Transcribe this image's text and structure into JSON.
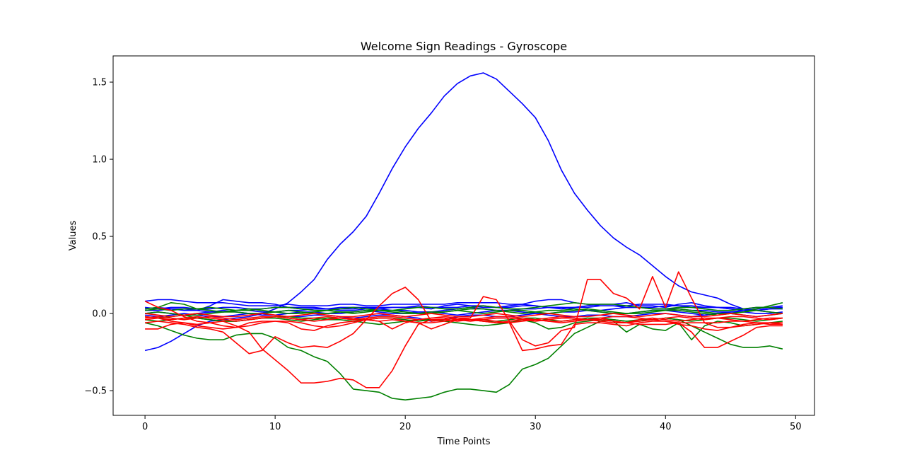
{
  "chart_data": {
    "type": "line",
    "title": "Welcome Sign Readings - Gyroscope",
    "xlabel": "Time Points",
    "ylabel": "Values",
    "xlim": [
      -2.45,
      51.45
    ],
    "ylim": [
      -0.66,
      1.67
    ],
    "x_ticks": [
      0,
      10,
      20,
      30,
      40,
      50
    ],
    "y_ticks": [
      -0.5,
      0.0,
      0.5,
      1.0,
      1.5
    ],
    "y_tick_labels": [
      "−0.5",
      "0.0",
      "0.5",
      "1.0",
      "1.5"
    ],
    "x": [
      0,
      1,
      2,
      3,
      4,
      5,
      6,
      7,
      8,
      9,
      10,
      11,
      12,
      13,
      14,
      15,
      16,
      17,
      18,
      19,
      20,
      21,
      22,
      23,
      24,
      25,
      26,
      27,
      28,
      29,
      30,
      31,
      32,
      33,
      34,
      35,
      36,
      37,
      38,
      39,
      40,
      41,
      42,
      43,
      44,
      45,
      46,
      47,
      48,
      49
    ],
    "grid": false,
    "legend": "none",
    "series": [
      {
        "color": "#0000ff",
        "values": [
          -0.24,
          -0.22,
          -0.18,
          -0.13,
          -0.08,
          -0.05,
          -0.04,
          -0.03,
          -0.02,
          0.0,
          0.03,
          0.07,
          0.14,
          0.22,
          0.35,
          0.45,
          0.53,
          0.63,
          0.78,
          0.94,
          1.08,
          1.2,
          1.3,
          1.41,
          1.49,
          1.54,
          1.56,
          1.52,
          1.44,
          1.36,
          1.27,
          1.12,
          0.93,
          0.78,
          0.67,
          0.57,
          0.49,
          0.43,
          0.38,
          0.31,
          0.24,
          0.18,
          0.14,
          0.12,
          0.1,
          0.06,
          0.03,
          0.02,
          0.01,
          0.0
        ]
      },
      {
        "color": "#0000ff",
        "values": [
          0.08,
          0.09,
          0.09,
          0.08,
          0.07,
          0.07,
          0.07,
          0.06,
          0.05,
          0.05,
          0.05,
          0.06,
          0.05,
          0.05,
          0.05,
          0.06,
          0.06,
          0.05,
          0.05,
          0.06,
          0.06,
          0.06,
          0.06,
          0.06,
          0.07,
          0.07,
          0.07,
          0.07,
          0.06,
          0.06,
          0.08,
          0.09,
          0.09,
          0.07,
          0.06,
          0.05,
          0.05,
          0.05,
          0.06,
          0.06,
          0.06,
          0.05,
          0.05,
          0.04,
          0.04,
          0.03,
          0.02,
          0.03,
          0.04,
          0.05
        ]
      },
      {
        "color": "#0000ff",
        "values": [
          0.03,
          0.04,
          0.03,
          0.02,
          0.02,
          0.05,
          0.09,
          0.08,
          0.07,
          0.07,
          0.06,
          0.04,
          0.03,
          0.03,
          0.03,
          0.03,
          0.03,
          0.04,
          0.04,
          0.04,
          0.04,
          0.04,
          0.03,
          0.05,
          0.06,
          0.05,
          0.04,
          0.04,
          0.05,
          0.06,
          0.05,
          0.04,
          0.03,
          0.04,
          0.05,
          0.06,
          0.06,
          0.07,
          0.05,
          0.05,
          0.04,
          0.06,
          0.07,
          0.05,
          0.04,
          0.03,
          0.02,
          0.02,
          0.03,
          0.04
        ]
      },
      {
        "color": "#0000ff",
        "values": [
          0.02,
          0.02,
          0.03,
          0.03,
          0.02,
          0.01,
          0.01,
          0.02,
          0.02,
          0.01,
          0.01,
          0.02,
          0.02,
          0.03,
          0.03,
          0.02,
          0.02,
          0.03,
          0.03,
          0.02,
          0.02,
          0.01,
          0.01,
          0.02,
          0.03,
          0.04,
          0.03,
          0.02,
          0.02,
          0.03,
          0.03,
          0.04,
          0.04,
          0.03,
          0.02,
          0.02,
          0.03,
          0.04,
          0.04,
          0.03,
          0.03,
          0.03,
          0.02,
          0.02,
          0.01,
          0.01,
          0.02,
          0.02,
          0.03,
          0.03
        ]
      },
      {
        "color": "#0000ff",
        "values": [
          0.0,
          0.01,
          0.0,
          -0.01,
          0.0,
          0.01,
          0.02,
          0.01,
          0.0,
          -0.01,
          -0.01,
          0.0,
          0.01,
          0.01,
          0.0,
          0.0,
          0.01,
          0.02,
          0.01,
          0.0,
          0.0,
          0.01,
          0.01,
          0.0,
          -0.01,
          0.0,
          0.01,
          0.02,
          0.02,
          0.01,
          0.0,
          0.0,
          0.01,
          0.01,
          0.02,
          0.01,
          0.0,
          0.0,
          0.01,
          0.02,
          0.02,
          0.01,
          0.0,
          -0.01,
          0.0,
          0.01,
          0.01,
          0.0,
          0.0,
          0.01
        ]
      },
      {
        "color": "#0000ff",
        "values": [
          -0.01,
          -0.02,
          -0.01,
          0.0,
          -0.01,
          -0.02,
          -0.02,
          -0.01,
          0.0,
          0.0,
          -0.01,
          -0.02,
          -0.02,
          -0.01,
          -0.01,
          -0.02,
          -0.03,
          -0.02,
          -0.01,
          -0.01,
          -0.02,
          -0.03,
          -0.05,
          -0.04,
          -0.02,
          -0.01,
          -0.01,
          -0.02,
          -0.02,
          -0.01,
          0.0,
          -0.01,
          -0.02,
          -0.02,
          -0.01,
          -0.01,
          -0.02,
          -0.02,
          -0.01,
          0.0,
          0.0,
          -0.01,
          -0.02,
          -0.01,
          0.0,
          0.0,
          -0.01,
          -0.02,
          -0.01,
          0.0
        ]
      },
      {
        "color": "#0000ff",
        "values": [
          0.04,
          0.03,
          0.04,
          0.04,
          0.03,
          0.03,
          0.04,
          0.04,
          0.03,
          0.03,
          0.04,
          0.04,
          0.04,
          0.04,
          0.03,
          0.04,
          0.04,
          0.04,
          0.03,
          0.04,
          0.04,
          0.05,
          0.04,
          0.04,
          0.04,
          0.05,
          0.05,
          0.04,
          0.04,
          0.05,
          0.05,
          0.04,
          0.04,
          0.04,
          0.04,
          0.05,
          0.05,
          0.04,
          0.04,
          0.04,
          0.05,
          0.05,
          0.04,
          0.04,
          0.04,
          0.04,
          0.03,
          0.04,
          0.04,
          0.04
        ]
      },
      {
        "color": "#008000",
        "values": [
          0.03,
          0.04,
          0.07,
          0.06,
          0.03,
          0.02,
          0.01,
          0.02,
          0.03,
          0.02,
          0.01,
          0.0,
          0.0,
          0.01,
          0.02,
          0.01,
          0.0,
          0.01,
          0.02,
          0.02,
          0.01,
          0.0,
          0.0,
          0.01,
          0.02,
          0.03,
          0.03,
          0.02,
          0.01,
          0.0,
          0.01,
          0.02,
          0.02,
          0.03,
          0.02,
          0.01,
          0.0,
          0.0,
          0.01,
          0.02,
          0.02,
          0.03,
          0.02,
          0.01,
          0.0,
          0.0,
          0.01,
          0.03,
          0.05,
          0.07
        ]
      },
      {
        "color": "#008000",
        "values": [
          -0.06,
          -0.08,
          -0.11,
          -0.14,
          -0.16,
          -0.17,
          -0.17,
          -0.14,
          -0.13,
          -0.13,
          -0.16,
          -0.22,
          -0.24,
          -0.28,
          -0.31,
          -0.39,
          -0.49,
          -0.5,
          -0.51,
          -0.55,
          -0.56,
          -0.55,
          -0.54,
          -0.51,
          -0.49,
          -0.49,
          -0.5,
          -0.51,
          -0.46,
          -0.36,
          -0.33,
          -0.29,
          -0.21,
          -0.13,
          -0.09,
          -0.05,
          -0.04,
          -0.05,
          -0.04,
          -0.04,
          -0.03,
          -0.04,
          -0.08,
          -0.12,
          -0.16,
          -0.2,
          -0.22,
          -0.22,
          -0.21,
          -0.23
        ]
      },
      {
        "color": "#008000",
        "values": [
          -0.02,
          -0.03,
          -0.02,
          -0.01,
          -0.03,
          -0.04,
          -0.05,
          -0.05,
          -0.04,
          -0.03,
          -0.02,
          -0.02,
          -0.03,
          -0.03,
          -0.04,
          -0.04,
          -0.05,
          -0.06,
          -0.07,
          -0.06,
          -0.05,
          -0.04,
          -0.04,
          -0.05,
          -0.06,
          -0.07,
          -0.08,
          -0.07,
          -0.06,
          -0.04,
          -0.06,
          -0.1,
          -0.09,
          -0.06,
          -0.05,
          -0.04,
          -0.05,
          -0.12,
          -0.07,
          -0.1,
          -0.11,
          -0.06,
          -0.17,
          -0.08,
          -0.05,
          -0.06,
          -0.08,
          -0.07,
          -0.06,
          -0.05
        ]
      },
      {
        "color": "#008000",
        "values": [
          0.0,
          0.01,
          0.0,
          -0.01,
          -0.01,
          0.0,
          0.01,
          0.01,
          0.0,
          0.0,
          0.01,
          0.02,
          0.01,
          0.0,
          0.0,
          0.01,
          0.01,
          0.02,
          0.02,
          0.01,
          0.0,
          0.0,
          0.01,
          0.01,
          0.02,
          0.01,
          0.0,
          0.01,
          0.02,
          0.02,
          0.01,
          0.0,
          0.01,
          0.02,
          0.03,
          0.02,
          0.01,
          0.0,
          0.0,
          0.01,
          0.02,
          0.02,
          0.01,
          0.0,
          -0.01,
          0.0,
          0.01,
          0.02,
          0.01,
          0.0
        ]
      },
      {
        "color": "#008000",
        "values": [
          -0.04,
          -0.05,
          -0.04,
          -0.03,
          -0.03,
          -0.04,
          -0.05,
          -0.05,
          -0.04,
          -0.03,
          -0.03,
          -0.04,
          -0.05,
          -0.04,
          -0.03,
          -0.03,
          -0.04,
          -0.04,
          -0.03,
          -0.03,
          -0.04,
          -0.05,
          -0.04,
          -0.04,
          -0.03,
          -0.04,
          -0.05,
          -0.05,
          -0.04,
          -0.03,
          -0.03,
          -0.04,
          -0.05,
          -0.04,
          -0.03,
          -0.03,
          -0.04,
          -0.05,
          -0.05,
          -0.04,
          -0.03,
          -0.04,
          -0.05,
          -0.04,
          -0.03,
          -0.03,
          -0.04,
          -0.05,
          -0.04,
          -0.03
        ]
      },
      {
        "color": "#008000",
        "values": [
          0.02,
          0.03,
          0.02,
          0.03,
          0.03,
          0.04,
          0.03,
          0.02,
          0.02,
          0.03,
          0.04,
          0.04,
          0.03,
          0.02,
          0.02,
          0.03,
          0.04,
          0.03,
          0.02,
          0.02,
          0.03,
          0.04,
          0.04,
          0.03,
          0.03,
          0.04,
          0.05,
          0.04,
          0.03,
          0.03,
          0.04,
          0.05,
          0.06,
          0.07,
          0.06,
          0.06,
          0.06,
          0.05,
          0.04,
          0.03,
          0.03,
          0.04,
          0.04,
          0.03,
          0.02,
          0.02,
          0.03,
          0.04,
          0.04,
          0.03
        ]
      },
      {
        "color": "#ff0000",
        "values": [
          -0.1,
          -0.1,
          -0.07,
          -0.06,
          -0.08,
          -0.09,
          -0.1,
          -0.09,
          -0.06,
          -0.05,
          -0.05,
          -0.06,
          -0.1,
          -0.11,
          -0.08,
          -0.06,
          -0.05,
          -0.04,
          0.05,
          0.13,
          0.17,
          0.09,
          -0.05,
          -0.04,
          -0.03,
          -0.03,
          0.11,
          0.09,
          -0.05,
          -0.17,
          -0.21,
          -0.19,
          -0.11,
          -0.09,
          0.22,
          0.22,
          0.13,
          0.1,
          0.03,
          0.24,
          0.04,
          0.27,
          0.1,
          -0.06,
          -0.06,
          -0.05,
          -0.05,
          -0.06,
          -0.06,
          -0.07
        ]
      },
      {
        "color": "#ff0000",
        "values": [
          0.08,
          0.04,
          0.02,
          -0.02,
          -0.05,
          -0.06,
          -0.08,
          -0.09,
          -0.08,
          -0.06,
          -0.05,
          -0.05,
          -0.06,
          -0.08,
          -0.09,
          -0.08,
          -0.06,
          -0.04,
          -0.03,
          -0.03,
          -0.05,
          -0.06,
          -0.06,
          -0.05,
          -0.04,
          -0.04,
          -0.05,
          -0.06,
          -0.06,
          -0.24,
          -0.23,
          -0.21,
          -0.2,
          -0.07,
          -0.06,
          -0.06,
          -0.07,
          -0.08,
          -0.06,
          -0.05,
          -0.05,
          -0.06,
          -0.12,
          -0.22,
          -0.22,
          -0.18,
          -0.14,
          -0.09,
          -0.08,
          -0.08
        ]
      },
      {
        "color": "#ff0000",
        "values": [
          -0.06,
          -0.05,
          -0.06,
          -0.07,
          -0.09,
          -0.1,
          -0.12,
          -0.19,
          -0.26,
          -0.24,
          -0.15,
          -0.19,
          -0.22,
          -0.21,
          -0.22,
          -0.18,
          -0.13,
          -0.04,
          -0.05,
          -0.04,
          -0.05,
          -0.06,
          -0.1,
          -0.07,
          -0.04,
          -0.04,
          -0.05,
          -0.06,
          -0.05,
          -0.04,
          -0.04,
          -0.05,
          -0.05,
          -0.04,
          -0.04,
          -0.05,
          -0.06,
          -0.06,
          -0.07,
          -0.07,
          -0.07,
          -0.06,
          -0.06,
          -0.06,
          -0.09,
          -0.09,
          -0.08,
          -0.07,
          -0.06,
          -0.06
        ]
      },
      {
        "color": "#ff0000",
        "values": [
          -0.04,
          -0.03,
          -0.05,
          -0.06,
          -0.07,
          -0.06,
          -0.05,
          -0.08,
          -0.12,
          -0.23,
          -0.3,
          -0.37,
          -0.45,
          -0.45,
          -0.44,
          -0.42,
          -0.43,
          -0.48,
          -0.48,
          -0.37,
          -0.21,
          -0.07,
          -0.04,
          -0.04,
          -0.05,
          -0.04,
          -0.04,
          -0.05,
          -0.06,
          -0.05,
          -0.04,
          -0.05,
          -0.06,
          -0.05,
          -0.04,
          -0.03,
          -0.05,
          -0.06,
          -0.05,
          -0.04,
          -0.05,
          -0.07,
          -0.08,
          -0.1,
          -0.11,
          -0.09,
          -0.07,
          -0.06,
          -0.07,
          -0.07
        ]
      },
      {
        "color": "#ff0000",
        "values": [
          -0.02,
          -0.03,
          -0.04,
          -0.03,
          -0.02,
          -0.03,
          -0.04,
          -0.05,
          -0.04,
          -0.03,
          -0.02,
          -0.03,
          -0.04,
          -0.05,
          -0.04,
          -0.03,
          -0.03,
          -0.04,
          -0.05,
          -0.1,
          -0.06,
          -0.04,
          -0.03,
          -0.03,
          -0.04,
          -0.05,
          -0.04,
          -0.03,
          -0.03,
          -0.04,
          -0.05,
          -0.04,
          -0.03,
          -0.03,
          -0.04,
          -0.04,
          -0.05,
          -0.06,
          -0.04,
          -0.03,
          -0.04,
          -0.05,
          -0.04,
          -0.03,
          -0.03,
          -0.04,
          -0.05,
          -0.04,
          -0.03,
          -0.03
        ]
      },
      {
        "color": "#ff0000",
        "values": [
          0.0,
          -0.01,
          -0.02,
          -0.01,
          0.0,
          -0.01,
          -0.02,
          -0.02,
          -0.01,
          0.0,
          -0.01,
          -0.02,
          -0.01,
          0.0,
          -0.01,
          -0.02,
          -0.02,
          -0.01,
          0.0,
          -0.01,
          -0.02,
          -0.01,
          0.0,
          -0.01,
          -0.02,
          -0.02,
          -0.01,
          0.0,
          -0.01,
          -0.02,
          -0.01,
          0.0,
          -0.01,
          -0.02,
          -0.02,
          -0.01,
          0.0,
          -0.01,
          -0.02,
          -0.01,
          0.0,
          -0.01,
          -0.02,
          -0.02,
          -0.01,
          0.0,
          -0.01,
          -0.02,
          -0.01,
          0.0
        ]
      },
      {
        "color": "#ff0000",
        "values": [
          -0.03,
          -0.02,
          -0.03,
          -0.04,
          -0.03,
          -0.02,
          -0.03,
          -0.04,
          -0.03,
          -0.02,
          -0.02,
          -0.03,
          -0.04,
          -0.03,
          -0.02,
          -0.03,
          -0.04,
          -0.03,
          -0.02,
          -0.02,
          -0.03,
          -0.04,
          -0.03,
          -0.02,
          -0.03,
          -0.04,
          -0.03,
          -0.02,
          -0.02,
          -0.03,
          -0.04,
          -0.03,
          -0.02,
          -0.03,
          -0.04,
          -0.03,
          -0.02,
          -0.02,
          -0.03,
          -0.04,
          -0.03,
          -0.02,
          -0.03,
          -0.04,
          -0.03,
          -0.02,
          -0.02,
          -0.03,
          -0.04,
          -0.03
        ]
      }
    ]
  }
}
